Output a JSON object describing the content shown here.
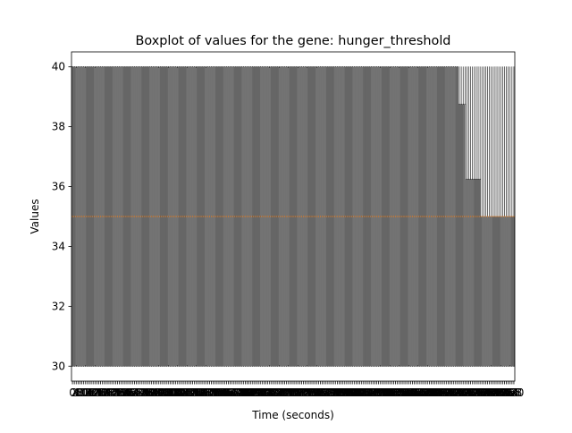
{
  "chart_data": {
    "type": "boxplot",
    "title": "Boxplot of values for the gene: hunger_threshold",
    "xlabel": "Time (seconds)",
    "ylabel": "Values",
    "ylim": [
      29.5,
      40.5
    ],
    "y_ticks": [
      30,
      32,
      34,
      36,
      38,
      40
    ],
    "x_tick_labels": [
      "0",
      "2",
      "4",
      "6",
      "8",
      "10",
      "12",
      "14",
      "16",
      "18",
      "20",
      "22",
      "24",
      "26",
      "28",
      "30",
      "32",
      "34",
      "36",
      "38",
      "40",
      "42",
      "44",
      "46",
      "48",
      "50",
      "52",
      "54",
      "56",
      "58",
      "60",
      "62",
      "64",
      "66",
      "68",
      "70",
      "72",
      "74",
      "76",
      "78",
      "80",
      "82",
      "84",
      "86",
      "88",
      "90",
      "92",
      "94",
      "96",
      "98",
      "100",
      "102",
      "104",
      "106",
      "108",
      "110",
      "112",
      "114",
      "116",
      "118",
      "120",
      "122",
      "124",
      "126",
      "128",
      "130",
      "132",
      "134",
      "136",
      "138",
      "140",
      "142",
      "144",
      "146",
      "148",
      "150",
      "152",
      "154",
      "156",
      "158",
      "160",
      "162",
      "164",
      "166",
      "168",
      "170",
      "172",
      "174",
      "176",
      "178",
      "180",
      "182",
      "184",
      "186",
      "188",
      "190",
      "192",
      "194",
      "196",
      "198",
      "200",
      "202",
      "204",
      "206",
      "208",
      "210",
      "212",
      "214",
      "216",
      "218",
      "220",
      "222",
      "224",
      "226",
      "228",
      "230",
      "232",
      "234",
      "236",
      "238",
      "240",
      "242",
      "244",
      "246",
      "248",
      "250",
      "252",
      "254",
      "256",
      "258",
      "260",
      "262",
      "264",
      "266",
      "268",
      "270",
      "272",
      "274",
      "276",
      "278",
      "280",
      "282",
      "284",
      "286",
      "288",
      "290",
      "292",
      "294",
      "296",
      "298",
      "300",
      "302",
      "304",
      "306",
      "308",
      "310",
      "312",
      "314",
      "316",
      "318",
      "320",
      "322",
      "324",
      "326",
      "328",
      "330",
      "332",
      "334",
      "336",
      "338",
      "340",
      "342",
      "344",
      "346",
      "348",
      "350",
      "352",
      "354",
      "356",
      "358",
      "360",
      "362",
      "364",
      "366",
      "368",
      "370",
      "372",
      "374",
      "376",
      "378",
      "380",
      "382",
      "384",
      "386",
      "388",
      "390",
      "392",
      "394",
      "396",
      "398",
      "400",
      "402",
      "404",
      "406",
      "408",
      "410",
      "412",
      "414",
      "416",
      "418",
      "420",
      "422",
      "424",
      "426",
      "428",
      "430",
      "432",
      "434",
      "436",
      "438",
      "440",
      "442",
      "444",
      "446",
      "448",
      "450",
      "452",
      "454",
      "456",
      "458",
      "460",
      "462",
      "464",
      "466",
      "468",
      "470"
    ],
    "box_groups": [
      {
        "count": 206,
        "q1": 30,
        "median": 35,
        "q3": 40,
        "whisker_low": 30,
        "whisker_high": 40
      },
      {
        "count": 4,
        "q1": 30,
        "median": 35,
        "q3": 38.75,
        "whisker_low": 30,
        "whisker_high": 40
      },
      {
        "count": 8,
        "q1": 30,
        "median": 35,
        "q3": 36.25,
        "whisker_low": 30,
        "whisker_high": 40
      },
      {
        "count": 18,
        "q1": 30,
        "median": 35,
        "q3": 35,
        "whisker_low": 30,
        "whisker_high": 40
      }
    ],
    "colors": {
      "box": "#000000",
      "median": "#ff7f0e"
    }
  }
}
